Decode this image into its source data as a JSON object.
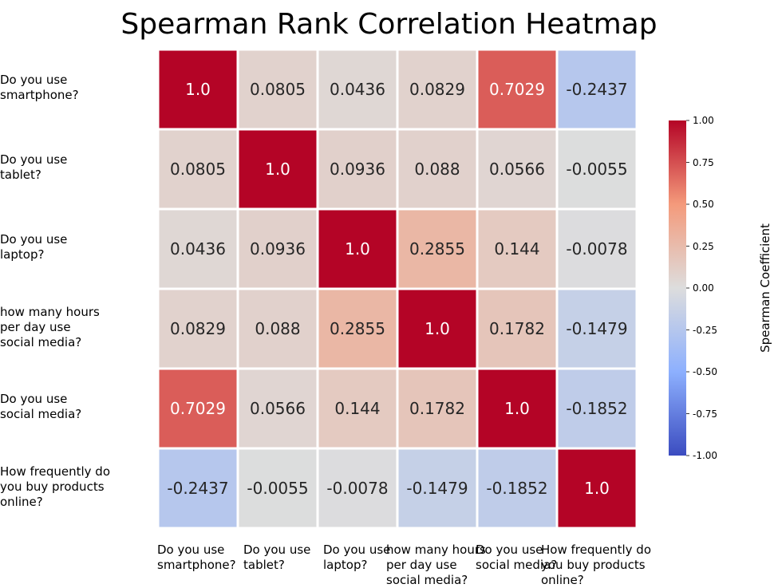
{
  "chart_data": {
    "type": "heatmap",
    "title": "Spearman Rank Correlation Heatmap",
    "row_labels": [
      "Do you use\nsmartphone?",
      "Do you use\ntablet?",
      "Do you use\nlaptop?",
      "how many hours\nper day use\nsocial media?",
      "Do you use\nsocial media?",
      "How frequently do\nyou buy products\nonline?"
    ],
    "col_labels": [
      "Do you use\nsmartphone?",
      "Do you use\ntablet?",
      "Do you use\nlaptop?",
      "how many hours\nper day use\nsocial media?",
      "Do you use\nsocial media?",
      "How frequently do\nyou buy products\nonline?"
    ],
    "values": [
      [
        1.0,
        0.0805,
        0.0436,
        0.0829,
        0.7029,
        -0.2437
      ],
      [
        0.0805,
        1.0,
        0.0936,
        0.088,
        0.0566,
        -0.0055
      ],
      [
        0.0436,
        0.0936,
        1.0,
        0.2855,
        0.144,
        -0.0078
      ],
      [
        0.0829,
        0.088,
        0.2855,
        1.0,
        0.1782,
        -0.1479
      ],
      [
        0.7029,
        0.0566,
        0.144,
        0.1782,
        1.0,
        -0.1852
      ],
      [
        -0.2437,
        -0.0055,
        -0.0078,
        -0.1479,
        -0.1852,
        1.0
      ]
    ],
    "value_labels": [
      [
        "1.0",
        "0.0805",
        "0.0436",
        "0.0829",
        "0.7029",
        "-0.2437"
      ],
      [
        "0.0805",
        "1.0",
        "0.0936",
        "0.088",
        "0.0566",
        "-0.0055"
      ],
      [
        "0.0436",
        "0.0936",
        "1.0",
        "0.2855",
        "0.144",
        "-0.0078"
      ],
      [
        "0.0829",
        "0.088",
        "0.2855",
        "1.0",
        "0.1782",
        "-0.1479"
      ],
      [
        "0.7029",
        "0.0566",
        "0.144",
        "0.1782",
        "1.0",
        "-0.1852"
      ],
      [
        "-0.2437",
        "-0.0055",
        "-0.0078",
        "-0.1479",
        "-0.1852",
        "1.0"
      ]
    ],
    "colormap": "coolwarm",
    "vmin": -1.0,
    "vmax": 1.0,
    "colorbar": {
      "label": "Spearman Coefficient",
      "ticks": [
        "1.00",
        "0.75",
        "0.50",
        "0.25",
        "0.00",
        "-0.25",
        "-0.50",
        "-0.75",
        "-1.00"
      ],
      "tick_values": [
        1.0,
        0.75,
        0.5,
        0.25,
        0.0,
        -0.25,
        -0.5,
        -0.75,
        -1.0
      ],
      "placement": "right"
    },
    "grid": false
  }
}
